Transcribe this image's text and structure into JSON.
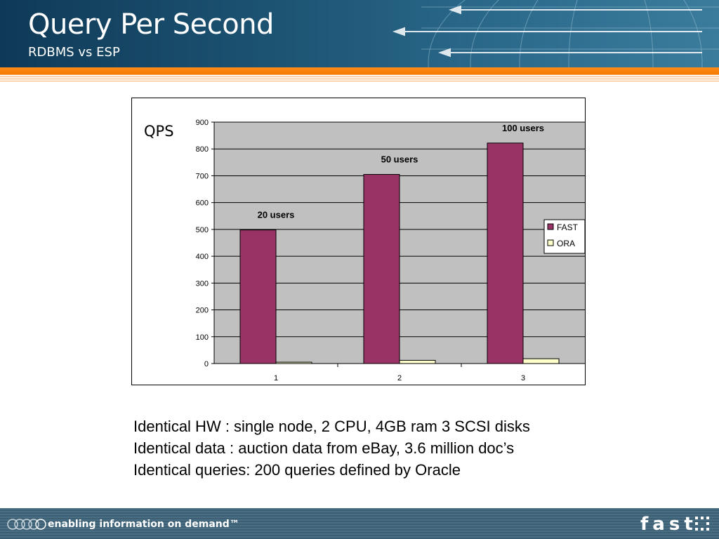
{
  "header": {
    "title": "Query Per Second",
    "subtitle": "RDBMS vs ESP"
  },
  "colors": {
    "header_dark": "#0f3a57",
    "accent_orange": "#f47b00",
    "plot_bg": "#c0c0c0",
    "fast": "#993366",
    "ora": "#ffffcc"
  },
  "chart_data": {
    "type": "bar",
    "ylabel": "QPS",
    "categories": [
      "1",
      "2",
      "3"
    ],
    "series": [
      {
        "name": "FAST",
        "values": [
          498,
          705,
          822
        ]
      },
      {
        "name": "ORA",
        "values": [
          5,
          12,
          18
        ]
      }
    ],
    "annotations": [
      "20 users",
      "50 users",
      "100 users"
    ],
    "ylim": [
      0,
      900
    ],
    "yticks": [
      0,
      100,
      200,
      300,
      400,
      500,
      600,
      700,
      800,
      900
    ],
    "grid": true,
    "legend_position": "right"
  },
  "notes": [
    "Identical HW : single node, 2 CPU, 4GB ram 3 SCSI disks",
    "Identical data : auction data from eBay, 3.6 million doc’s",
    "Identical queries: 200 queries defined by Oracle"
  ],
  "footer": {
    "tagline": "enabling information on demand™",
    "logo": "fast"
  }
}
